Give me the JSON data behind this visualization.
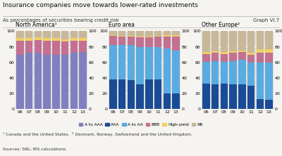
{
  "title": "Insurance companies move towards lower-rated investments",
  "subtitle": "As percentages of securities bearing credit risk",
  "graph_label": "Graph VI.7",
  "footnote1": "¹ Canada and the United States.",
  "footnote2": "² Denmark, Norway, Switzerland and the United Kingdom.",
  "sources": "Sources: SNL; BIS calculations.",
  "years": [
    "06",
    "07",
    "08",
    "09",
    "10",
    "11",
    "12",
    "13"
  ],
  "north_america": {
    "title": "North America¹",
    "A_to_AAA": [
      70,
      72,
      72,
      70,
      70,
      70,
      72,
      73
    ],
    "BBB": [
      18,
      16,
      17,
      18,
      18,
      17,
      16,
      15
    ],
    "High_yield": [
      3,
      3,
      3,
      3,
      3,
      3,
      3,
      3
    ],
    "NR": [
      9,
      9,
      8,
      9,
      9,
      10,
      9,
      9
    ]
  },
  "euro_area": {
    "title": "Euro area",
    "AAA": [
      38,
      38,
      37,
      32,
      38,
      38,
      20,
      20
    ],
    "A_to_AA": [
      44,
      44,
      45,
      48,
      42,
      42,
      58,
      55
    ],
    "BBB": [
      12,
      11,
      11,
      12,
      12,
      13,
      15,
      18
    ],
    "High_yield": [
      1,
      1,
      1,
      1,
      1,
      1,
      2,
      2
    ],
    "NR": [
      5,
      6,
      6,
      7,
      7,
      6,
      5,
      5
    ]
  },
  "other_europe": {
    "title": "Other Europe²",
    "AAA": [
      33,
      32,
      33,
      32,
      32,
      30,
      13,
      12
    ],
    "A_to_AA": [
      28,
      30,
      28,
      30,
      31,
      30,
      47,
      48
    ],
    "BBB": [
      10,
      10,
      10,
      10,
      10,
      10,
      12,
      12
    ],
    "High_yield": [
      2,
      2,
      2,
      2,
      2,
      2,
      5,
      5
    ],
    "NR": [
      27,
      26,
      27,
      26,
      25,
      28,
      23,
      23
    ]
  },
  "colors": {
    "A_to_AAA": "#8080c0",
    "AAA": "#1a4b96",
    "A_to_AA": "#5aabe0",
    "BBB": "#c47090",
    "High_yield": "#f0d060",
    "NR": "#c8b898"
  },
  "ylim": [
    0,
    100
  ],
  "yticks": [
    0,
    20,
    40,
    60,
    80,
    100
  ],
  "fig_bg": "#f5f4f0",
  "panel_bg": "#dcdcdc"
}
